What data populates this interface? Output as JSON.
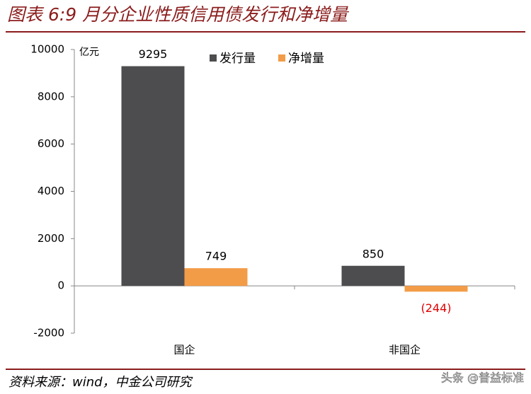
{
  "chart_data": {
    "type": "bar",
    "title": "图表 6:9 月分企业性质信用债发行和净增量",
    "y_unit": "亿元",
    "categories": [
      "国企",
      "非国企"
    ],
    "series": [
      {
        "name": "发行量",
        "color": "#4d4d4f",
        "values": [
          9295,
          850
        ]
      },
      {
        "name": "净增量",
        "color": "#f39c47",
        "values": [
          749,
          -244
        ],
        "value_labels": [
          "749",
          "(244)"
        ]
      }
    ],
    "ylim": [
      -2000,
      10000
    ],
    "yticks": [
      -2000,
      0,
      2000,
      4000,
      6000,
      8000,
      10000
    ],
    "negative_label_color": "#e00000",
    "legend": "top",
    "source": "资料来源：wind，中金公司研究",
    "watermark": "头条 @普益标准"
  }
}
